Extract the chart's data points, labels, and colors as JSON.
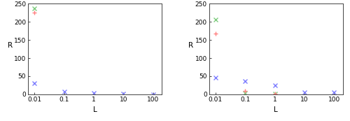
{
  "lambdas": [
    0.01,
    0.1,
    1,
    10,
    100
  ],
  "left": {
    "red": [
      225,
      null,
      null,
      null,
      null
    ],
    "green": [
      237,
      null,
      null,
      null,
      null
    ],
    "blue": [
      30,
      8.0,
      3.0,
      1.0,
      0.8
    ]
  },
  "right": {
    "red": [
      168,
      10,
      1.5,
      null,
      null
    ],
    "green": [
      207,
      3.0,
      2.0,
      null,
      null
    ],
    "blue": [
      47,
      36,
      24,
      6.0,
      5.0
    ]
  },
  "xlim": [
    0.006,
    200
  ],
  "ylim": [
    0,
    250
  ],
  "yticks": [
    0,
    50,
    100,
    150,
    200,
    250
  ],
  "xtick_vals": [
    0.01,
    0.1,
    1,
    10,
    100
  ],
  "xtick_labels": [
    "0.01",
    "0.1",
    "1",
    "10",
    "100"
  ],
  "xlabel": "L",
  "ylabel": "R",
  "red_color": "#ff8080",
  "green_color": "#80cc80",
  "blue_color": "#8080ff",
  "bg_color": "#ffffff"
}
